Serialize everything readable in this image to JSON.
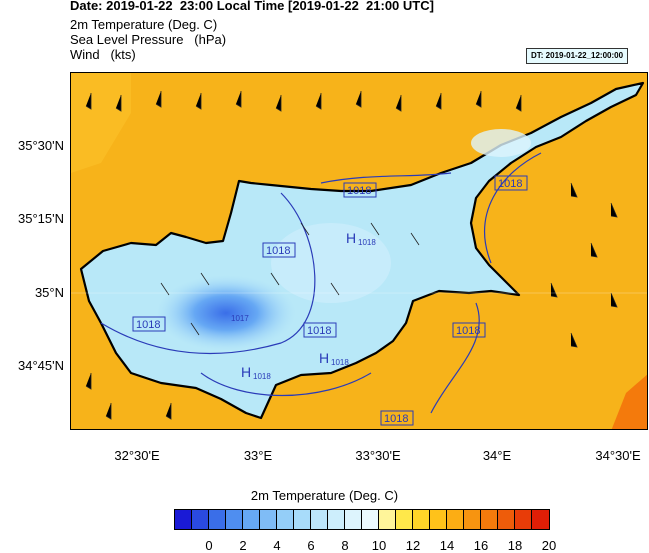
{
  "header": {
    "date": "Date: 2019-01-22  23:00 Local Time [2019-01-22  21:00 UTC]",
    "line1": "2m Temperature (Deg. C)",
    "line2": "Sea Level Pressure   (hPa)",
    "line3": "Wind   (kts)"
  },
  "dt_badge": "DT: 2019-01-22_12:00:00",
  "map": {
    "lat_labels": [
      "35°30'N",
      "35°15'N",
      "35°N",
      "34°45'N"
    ],
    "lon_labels": [
      "32°30'E",
      "33°E",
      "33°30'E",
      "34°E",
      "34°30'E"
    ],
    "isobar_labels": [
      "1018",
      "1018",
      "1018",
      "1018",
      "1018",
      "1018",
      "1018"
    ],
    "high_label": "H",
    "high_values": [
      "1018",
      "1018",
      "1018"
    ],
    "low_center_value": "1017",
    "colors": {
      "sea": "#f7b31a",
      "sea_light": "#fcd43a",
      "land_light": "#b8e8f8",
      "land_mid": "#8fd0f0",
      "land_dark": "#5aa8e8",
      "coast": "#000000",
      "isobar": "#2a3bb8"
    }
  },
  "colorbar": {
    "title": "2m Temperature (Deg. C)",
    "labels": [
      "0",
      "2",
      "4",
      "6",
      "8",
      "10",
      "12",
      "14",
      "16",
      "18",
      "20"
    ],
    "colors": [
      "#1a1ad6",
      "#2a4ae0",
      "#3a6ee8",
      "#4f8ef0",
      "#66a8f4",
      "#7fbcf6",
      "#94cef8",
      "#a8dcfa",
      "#bce6fb",
      "#cdeefc",
      "#ddf4fd",
      "#ecfaff",
      "#fff59a",
      "#ffe84a",
      "#ffd628",
      "#ffc21a",
      "#fcad14",
      "#f79410",
      "#f47a0c",
      "#ee5c0a",
      "#e83c08",
      "#e01e06"
    ]
  }
}
